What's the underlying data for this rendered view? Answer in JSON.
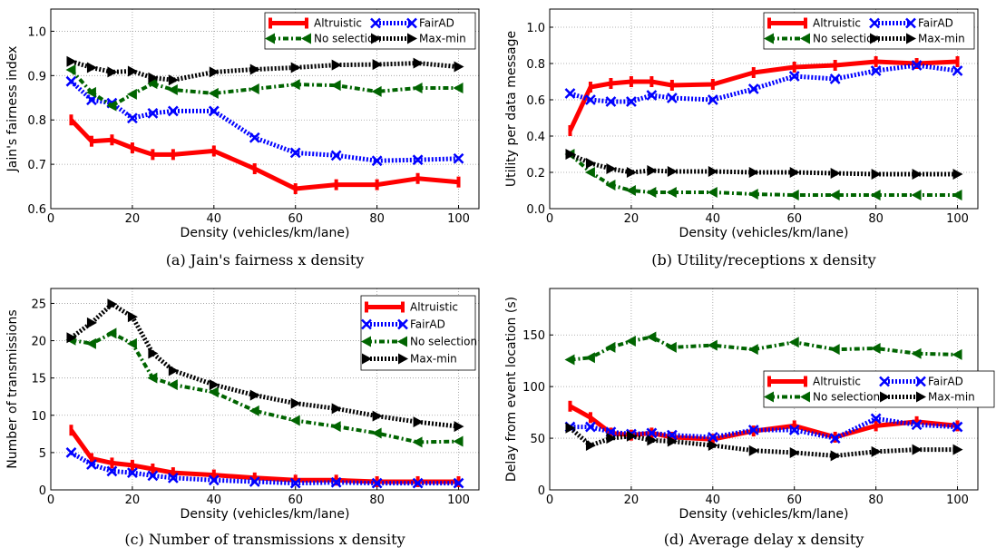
{
  "chart_data": [
    {
      "type": "line",
      "caption": "(a) Jain's fairness x density",
      "xlabel": "Density (vehicles/km/lane)",
      "ylabel": "Jain's fairness index",
      "xlim": [
        0,
        105
      ],
      "ylim": [
        0.6,
        1.05
      ],
      "xticks": [
        "0",
        "20",
        "40",
        "60",
        "80",
        "100"
      ],
      "yticks": [
        "0.6",
        "0.7",
        "0.8",
        "0.9",
        "1.0"
      ],
      "grid": true,
      "legend_position": "top-right",
      "legend_columns": 2,
      "series": [
        {
          "name": "Altruistic",
          "color": "#ff0000",
          "style": "solid",
          "marker": "bar",
          "x": [
            5,
            10,
            15,
            20,
            25,
            30,
            40,
            50,
            60,
            70,
            80,
            90,
            100
          ],
          "y": [
            0.8,
            0.752,
            0.755,
            0.737,
            0.722,
            0.722,
            0.73,
            0.69,
            0.645,
            0.654,
            0.654,
            0.668,
            0.66
          ]
        },
        {
          "name": "FairAD",
          "color": "#0000ff",
          "style": "dotted",
          "marker": "x",
          "x": [
            5,
            10,
            15,
            20,
            25,
            30,
            40,
            50,
            60,
            70,
            80,
            90,
            100
          ],
          "y": [
            0.887,
            0.845,
            0.838,
            0.804,
            0.815,
            0.82,
            0.82,
            0.76,
            0.726,
            0.72,
            0.708,
            0.71,
            0.713
          ]
        },
        {
          "name": "No selection",
          "color": "#006400",
          "style": "dashdot",
          "marker": "triangle-left",
          "x": [
            5,
            10,
            15,
            20,
            25,
            30,
            40,
            50,
            60,
            70,
            80,
            90,
            100
          ],
          "y": [
            0.913,
            0.862,
            0.832,
            0.858,
            0.882,
            0.868,
            0.86,
            0.87,
            0.88,
            0.878,
            0.864,
            0.872,
            0.872
          ]
        },
        {
          "name": "Max-min",
          "color": "#000000",
          "style": "dotted",
          "marker": "triangle-right",
          "x": [
            5,
            10,
            15,
            20,
            25,
            30,
            40,
            50,
            60,
            70,
            80,
            90,
            100
          ],
          "y": [
            0.932,
            0.918,
            0.908,
            0.91,
            0.895,
            0.89,
            0.908,
            0.914,
            0.918,
            0.924,
            0.925,
            0.928,
            0.92
          ]
        }
      ]
    },
    {
      "type": "line",
      "caption": "(b) Utility/receptions x density",
      "xlabel": "Density (vehicles/km/lane)",
      "ylabel": "Utility per data message",
      "xlim": [
        0,
        105
      ],
      "ylim": [
        0.0,
        1.1
      ],
      "xticks": [
        "0",
        "20",
        "40",
        "60",
        "80",
        "100"
      ],
      "yticks": [
        "0.0",
        "0.2",
        "0.4",
        "0.6",
        "0.8",
        "1.0"
      ],
      "grid": true,
      "legend_position": "top-right",
      "legend_columns": 2,
      "series": [
        {
          "name": "Altruistic",
          "color": "#ff0000",
          "style": "solid",
          "marker": "bar",
          "x": [
            5,
            10,
            15,
            20,
            25,
            30,
            40,
            50,
            60,
            70,
            80,
            90,
            100
          ],
          "y": [
            0.43,
            0.67,
            0.69,
            0.7,
            0.7,
            0.68,
            0.685,
            0.75,
            0.78,
            0.79,
            0.81,
            0.8,
            0.81
          ]
        },
        {
          "name": "FairAD",
          "color": "#0000ff",
          "style": "dotted",
          "marker": "x",
          "x": [
            5,
            10,
            15,
            20,
            25,
            30,
            40,
            50,
            60,
            70,
            80,
            90,
            100
          ],
          "y": [
            0.635,
            0.6,
            0.59,
            0.59,
            0.625,
            0.61,
            0.6,
            0.66,
            0.73,
            0.715,
            0.76,
            0.79,
            0.76
          ]
        },
        {
          "name": "No selection",
          "color": "#006400",
          "style": "dashdot",
          "marker": "triangle-left",
          "x": [
            5,
            10,
            15,
            20,
            25,
            30,
            40,
            50,
            60,
            70,
            80,
            90,
            100
          ],
          "y": [
            0.3,
            0.2,
            0.13,
            0.1,
            0.09,
            0.09,
            0.09,
            0.08,
            0.075,
            0.075,
            0.075,
            0.075,
            0.075
          ]
        },
        {
          "name": "Max-min",
          "color": "#000000",
          "style": "dotted",
          "marker": "triangle-right",
          "x": [
            5,
            10,
            15,
            20,
            25,
            30,
            40,
            50,
            60,
            70,
            80,
            90,
            100
          ],
          "y": [
            0.3,
            0.25,
            0.22,
            0.2,
            0.21,
            0.205,
            0.205,
            0.2,
            0.2,
            0.195,
            0.19,
            0.19,
            0.19
          ]
        }
      ]
    },
    {
      "type": "line",
      "caption": "(c) Number of transmissions x density",
      "xlabel": "Density (vehicles/km/lane)",
      "ylabel": "Number of transmissions",
      "xlim": [
        0,
        105
      ],
      "ylim": [
        0,
        27
      ],
      "xticks": [
        "0",
        "20",
        "40",
        "60",
        "80",
        "100"
      ],
      "yticks": [
        "0",
        "5",
        "10",
        "15",
        "20",
        "25"
      ],
      "grid": true,
      "legend_position": "top-right",
      "legend_columns": 1,
      "series": [
        {
          "name": "Altruistic",
          "color": "#ff0000",
          "style": "solid",
          "marker": "bar",
          "x": [
            5,
            10,
            15,
            20,
            25,
            30,
            40,
            50,
            60,
            70,
            80,
            90,
            100
          ],
          "y": [
            8.0,
            4.2,
            3.6,
            3.3,
            2.8,
            2.3,
            2.0,
            1.6,
            1.3,
            1.3,
            1.1,
            1.1,
            1.1
          ]
        },
        {
          "name": "FairAD",
          "color": "#0000ff",
          "style": "dotted",
          "marker": "x",
          "x": [
            5,
            10,
            15,
            20,
            25,
            30,
            40,
            50,
            60,
            70,
            80,
            90,
            100
          ],
          "y": [
            5.0,
            3.4,
            2.5,
            2.3,
            1.9,
            1.6,
            1.3,
            1.1,
            0.9,
            1.0,
            0.9,
            0.9,
            0.9
          ]
        },
        {
          "name": "No selection",
          "color": "#006400",
          "style": "dashdot",
          "marker": "triangle-left",
          "x": [
            5,
            10,
            15,
            20,
            25,
            30,
            40,
            50,
            60,
            70,
            80,
            90,
            100
          ],
          "y": [
            20.1,
            19.6,
            21.0,
            19.6,
            15.0,
            14.1,
            13.1,
            10.6,
            9.3,
            8.5,
            7.6,
            6.4,
            6.5
          ]
        },
        {
          "name": "Max-min",
          "color": "#000000",
          "style": "dotted",
          "marker": "triangle-right",
          "x": [
            5,
            10,
            15,
            20,
            25,
            30,
            40,
            50,
            60,
            70,
            80,
            90,
            100
          ],
          "y": [
            20.4,
            22.4,
            24.9,
            23.2,
            18.3,
            16.0,
            14.1,
            12.7,
            11.6,
            10.9,
            9.9,
            9.1,
            8.5
          ]
        }
      ]
    },
    {
      "type": "line",
      "caption": "(d) Average delay x density",
      "xlabel": "Density (vehicles/km/lane)",
      "ylabel": "Delay from event location (s)",
      "xlim": [
        0,
        105
      ],
      "ylim": [
        0,
        195
      ],
      "xticks": [
        "0",
        "20",
        "40",
        "60",
        "80",
        "100"
      ],
      "yticks": [
        "0",
        "50",
        "100",
        "150"
      ],
      "grid": true,
      "legend_position": "center-right",
      "legend_columns": 2,
      "series": [
        {
          "name": "Altruistic",
          "color": "#ff0000",
          "style": "solid",
          "marker": "bar",
          "x": [
            5,
            10,
            15,
            20,
            25,
            30,
            40,
            50,
            60,
            70,
            80,
            90,
            100
          ],
          "y": [
            81,
            70,
            55,
            53,
            55,
            51,
            49,
            57,
            62,
            51,
            62,
            66,
            62
          ]
        },
        {
          "name": "FairAD",
          "color": "#0000ff",
          "style": "dotted",
          "marker": "x",
          "x": [
            5,
            10,
            15,
            20,
            25,
            30,
            40,
            50,
            60,
            70,
            80,
            90,
            100
          ],
          "y": [
            61,
            61,
            56,
            54,
            55,
            53,
            51,
            58,
            58,
            50,
            69,
            63,
            61
          ]
        },
        {
          "name": "No selection",
          "color": "#006400",
          "style": "dashdot",
          "marker": "triangle-left",
          "x": [
            5,
            10,
            15,
            20,
            25,
            30,
            40,
            50,
            60,
            70,
            80,
            90,
            100
          ],
          "y": [
            126,
            128,
            138,
            144,
            148,
            138,
            140,
            136,
            143,
            136,
            137,
            132,
            131
          ]
        },
        {
          "name": "Max-min",
          "color": "#000000",
          "style": "dotted",
          "marker": "triangle-right",
          "x": [
            5,
            10,
            15,
            20,
            25,
            30,
            40,
            50,
            60,
            70,
            80,
            90,
            100
          ],
          "y": [
            60,
            43,
            50,
            52,
            48,
            47,
            43,
            38,
            36,
            33,
            37,
            39,
            39
          ]
        }
      ]
    }
  ]
}
